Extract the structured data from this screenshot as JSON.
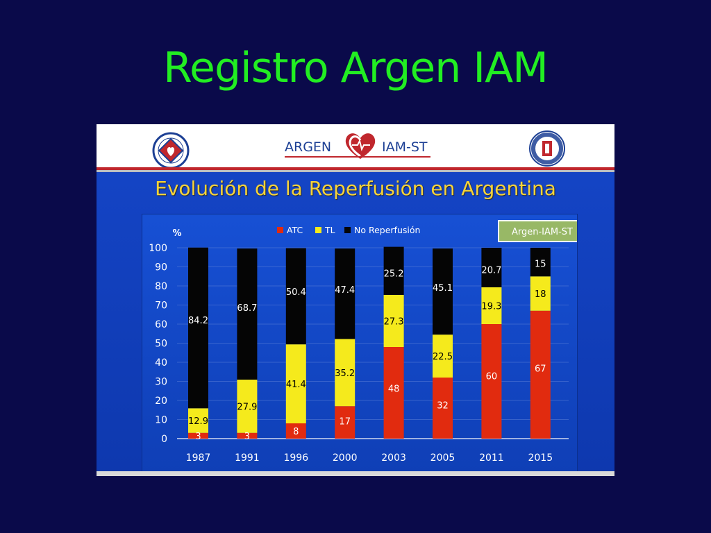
{
  "slide": {
    "title": "Registro Argen IAM"
  },
  "banner": {
    "brand_left": "ARGEN",
    "brand_right": "IAM-ST"
  },
  "colors": {
    "atc": "#e12b0f",
    "tl": "#f5ea1c",
    "none": "#050505",
    "background": "#0a0a4a",
    "title": "#22ee22",
    "chart_title": "#f6d33a"
  },
  "chart_data": {
    "type": "bar",
    "stacked": true,
    "title": "Evolución de la Reperfusión en Argentina",
    "ylabel": "%",
    "badge": "Argen-IAM-ST",
    "categories": [
      "1987",
      "1991",
      "1996",
      "2000",
      "2003",
      "2005",
      "2011",
      "2015"
    ],
    "ylim": [
      0,
      100
    ],
    "yticks": [
      "0",
      "10",
      "20",
      "30",
      "40",
      "50",
      "60",
      "70",
      "80",
      "90",
      "100"
    ],
    "legend_position": "top",
    "series": [
      {
        "name": "ATC",
        "values": [
          3,
          3,
          8,
          17,
          48,
          32,
          60,
          67
        ],
        "labels": [
          "3",
          "3",
          "8",
          "17",
          "48",
          "32",
          "60",
          "67"
        ]
      },
      {
        "name": "TL",
        "values": [
          12.9,
          27.9,
          41.4,
          35.2,
          27.3,
          22.5,
          19.3,
          18
        ],
        "labels": [
          "12.9",
          "27.9",
          "41.4",
          "35.2",
          "27.3",
          "22.5",
          "19.3",
          "18"
        ]
      },
      {
        "name": "No Reperfusión",
        "values": [
          84.2,
          68.7,
          50.4,
          47.4,
          25.2,
          45.1,
          20.7,
          15
        ],
        "labels": [
          "84.2",
          "68.7",
          "50.4",
          "47.4",
          "25.2",
          "45.1",
          "20.7",
          "15"
        ]
      }
    ]
  }
}
